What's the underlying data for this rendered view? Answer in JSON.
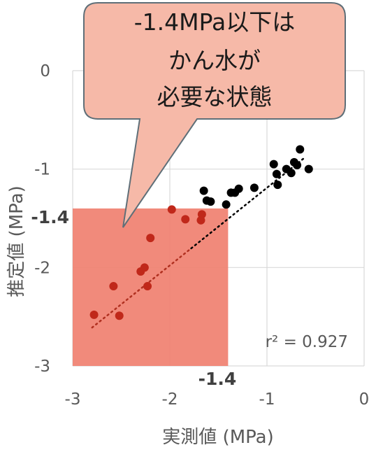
{
  "chart_data": {
    "type": "scatter",
    "xlabel": "実測値 (MPa)",
    "ylabel": "推定値 (MPa)",
    "xlim": [
      -3,
      0
    ],
    "ylim": [
      -3,
      0
    ],
    "x_ticks": [
      "-3",
      "-2",
      "-1",
      "0"
    ],
    "y_ticks": [
      "-3",
      "-2",
      "-1",
      "0"
    ],
    "grid": true,
    "threshold": -1.4,
    "threshold_x_label": "-1.4",
    "threshold_y_label": "-1.4",
    "annotation": "r² = 0.927",
    "callout_lines": [
      "-1.4MPa以下は",
      "かん水が",
      "必要な状態"
    ],
    "colors": {
      "highlight": "#f08070",
      "point_in": "#c0281a",
      "point_out": "#000000",
      "trendline_in": "#b03020",
      "trendline_out": "#000000",
      "callout_fill": "#f6b9a8",
      "callout_stroke": "#5f6f78"
    },
    "points": [
      {
        "x": -2.78,
        "y": -2.48
      },
      {
        "x": -2.58,
        "y": -2.19
      },
      {
        "x": -2.52,
        "y": -2.49
      },
      {
        "x": -2.3,
        "y": -2.04
      },
      {
        "x": -2.26,
        "y": -2.0
      },
      {
        "x": -2.23,
        "y": -2.19
      },
      {
        "x": -2.2,
        "y": -1.7
      },
      {
        "x": -1.84,
        "y": -1.51
      },
      {
        "x": -1.68,
        "y": -1.52
      },
      {
        "x": -1.98,
        "y": -1.41
      },
      {
        "x": -1.67,
        "y": -1.46
      },
      {
        "x": -1.65,
        "y": -1.22
      },
      {
        "x": -1.62,
        "y": -1.32
      },
      {
        "x": -1.58,
        "y": -1.33
      },
      {
        "x": -1.42,
        "y": -1.36
      },
      {
        "x": -1.37,
        "y": -1.24
      },
      {
        "x": -1.33,
        "y": -1.24
      },
      {
        "x": -1.29,
        "y": -1.2
      },
      {
        "x": -1.13,
        "y": -1.19
      },
      {
        "x": -0.93,
        "y": -0.95
      },
      {
        "x": -0.9,
        "y": -1.05
      },
      {
        "x": -0.89,
        "y": -1.16
      },
      {
        "x": -0.8,
        "y": -1.0
      },
      {
        "x": -0.75,
        "y": -1.04
      },
      {
        "x": -0.72,
        "y": -0.93
      },
      {
        "x": -0.69,
        "y": -0.96
      },
      {
        "x": -0.66,
        "y": -0.8
      },
      {
        "x": -0.57,
        "y": -1.0
      }
    ],
    "trendline": {
      "x1": -2.8,
      "y1": -2.61,
      "x2": -0.62,
      "y2": -0.89
    }
  }
}
